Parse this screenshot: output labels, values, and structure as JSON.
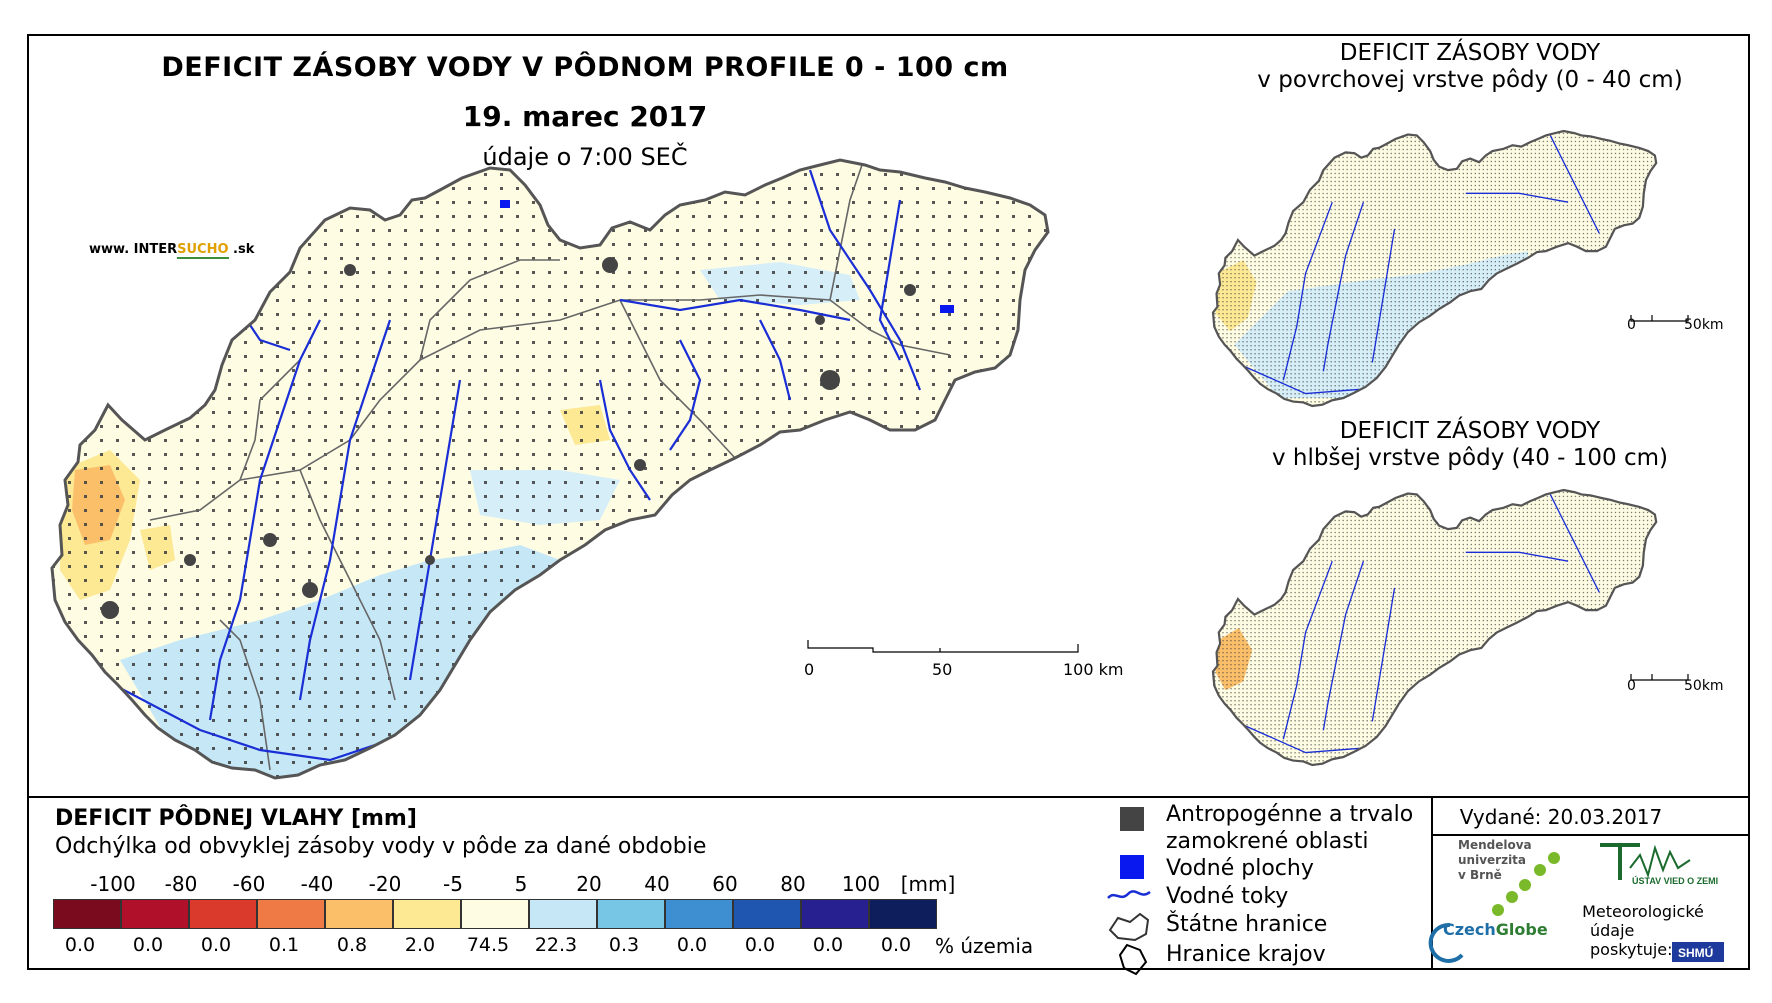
{
  "main_map": {
    "title": "DEFICIT ZÁSOBY VODY V PÔDNOM PROFILE 0 - 100 cm",
    "date": "19. marec 2017",
    "time_note": "údaje o 7:00 SEČ",
    "scale_bar": {
      "labels": [
        "0",
        "50",
        "100 km"
      ]
    }
  },
  "website": {
    "prefix": "www. INTER",
    "highlight": "SUCHO",
    "suffix": " .sk"
  },
  "inset_top": {
    "title_line1": "DEFICIT ZÁSOBY VODY",
    "title_line2": "v povrchovej vrstve pôdy (0 - 40 cm)",
    "scale_bar": {
      "labels": [
        "0",
        "50km"
      ]
    }
  },
  "inset_bottom": {
    "title_line1": "DEFICIT ZÁSOBY VODY",
    "title_line2": "v hlbšej vrstve pôdy (40 - 100 cm)",
    "scale_bar": {
      "labels": [
        "0",
        "50km"
      ]
    }
  },
  "legend": {
    "title": "DEFICIT PÔDNEJ VLAHY [mm]",
    "subtitle": "Odchýlka od obvyklej zásoby vody v pôde za dané obdobie",
    "breaks": [
      "-100",
      "-80",
      "-60",
      "-40",
      "-20",
      "-5",
      "5",
      "20",
      "40",
      "60",
      "80",
      "100"
    ],
    "unit": "[mm]",
    "classes": [
      {
        "color": "#7a0a1e",
        "percent": "0.0"
      },
      {
        "color": "#b0102a",
        "percent": "0.0"
      },
      {
        "color": "#d93a2b",
        "percent": "0.0"
      },
      {
        "color": "#f07a45",
        "percent": "0.1"
      },
      {
        "color": "#fbbf6a",
        "percent": "0.8"
      },
      {
        "color": "#fde893",
        "percent": "2.0"
      },
      {
        "color": "#fefce3",
        "percent": "74.5"
      },
      {
        "color": "#c6e8f6",
        "percent": "22.3"
      },
      {
        "color": "#78c6e6",
        "percent": "0.3"
      },
      {
        "color": "#3d8fd2",
        "percent": "0.0"
      },
      {
        "color": "#1f56b0",
        "percent": "0.0"
      },
      {
        "color": "#262090",
        "percent": "0.0"
      },
      {
        "color": "#0e1e5c",
        "percent": "0.0"
      }
    ],
    "percent_label": "% územia"
  },
  "symbols": {
    "anthropogenic_line1": "Antropogénne a trvalo",
    "anthropogenic_line2": "zamokrené oblasti",
    "water_bodies": "Vodné plochy",
    "rivers": "Vodné toky",
    "state_border": "Štátne hranice",
    "region_border": "Hranice krajov"
  },
  "issued": "Vydané: 20.03.2017",
  "credits": {
    "mendel_line1": "Mendelova",
    "mendel_line2": "univerzita",
    "mendel_line3": "v Brně",
    "czechglobe_a": "Czech",
    "czechglobe_b": "Globe",
    "meteo_line1": "Meteorologické",
    "meteo_line2": "údaje",
    "meteo_line3": "poskytuje:"
  },
  "colors": {
    "anthropogenic": "#444444",
    "water": "#0a18f0",
    "river": "#1a2ed6",
    "border": "#555555"
  }
}
